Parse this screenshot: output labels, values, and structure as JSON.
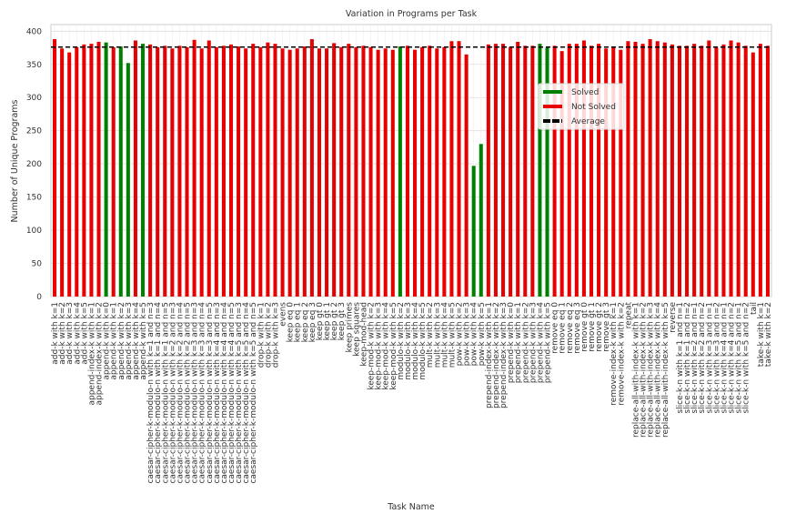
{
  "chart_data": {
    "type": "bar",
    "title": "Variation in Programs per Task",
    "x_label": "Task Name",
    "y_label": "Number of Unique Programs",
    "categories": [
      "add-k with k=1",
      "add-k with k=2",
      "add-k with k=3",
      "add-k with k=4",
      "add-k with k=5",
      "append-index-k with k=1",
      "append-index-k with k=2",
      "append-k with k=0",
      "append-k with k=1",
      "append-k with k=2",
      "append-k with k=3",
      "append-k with k=4",
      "append-k with k=5",
      "caesar-cipher-k-modulo-n with k=1 and n=3",
      "caesar-cipher-k-modulo-n with k=1 and n=4",
      "caesar-cipher-k-modulo-n with k=1 and n=5",
      "caesar-cipher-k-modulo-n with k=2 and n=3",
      "caesar-cipher-k-modulo-n with k=2 and n=4",
      "caesar-cipher-k-modulo-n with k=2 and n=5",
      "caesar-cipher-k-modulo-n with k=3 and n=3",
      "caesar-cipher-k-modulo-n with k=3 and n=4",
      "caesar-cipher-k-modulo-n with k=3 and n=5",
      "caesar-cipher-k-modulo-n with k=4 and n=3",
      "caesar-cipher-k-modulo-n with k=4 and n=4",
      "caesar-cipher-k-modulo-n with k=4 and n=5",
      "caesar-cipher-k-modulo-n with k=5 and n=3",
      "caesar-cipher-k-modulo-n with k=5 and n=4",
      "caesar-cipher-k-modulo-n with k=5 and n=5",
      "drop-k with k=1",
      "drop-k with k=2",
      "drop-k with k=3",
      "evens",
      "keep eq 0",
      "keep eq 1",
      "keep eq 2",
      "keep eq 3",
      "keep gt 0",
      "keep gt 1",
      "keep gt 2",
      "keep gt 3",
      "keep primes",
      "keep squares",
      "keep-mod-head",
      "keep-mod-k with k=2",
      "keep-mod-k with k=3",
      "keep-mod-k with k=4",
      "keep-mod-k with k=5",
      "modulo-k with k=2",
      "modulo-k with k=3",
      "modulo-k with k=4",
      "modulo-k with k=5",
      "mult-k with k=2",
      "mult-k with k=3",
      "mult-k with k=4",
      "mult-k with k=5",
      "pow-k with k=2",
      "pow-k with k=3",
      "pow-k with k=4",
      "pow-k with k=5",
      "prepend-index-k with k=1",
      "prepend-index-k with k=2",
      "prepend-index-k with k=3",
      "prepend-k with k=0",
      "prepend-k with k=1",
      "prepend-k with k=2",
      "prepend-k with k=3",
      "prepend-k with k=4",
      "prepend-k with k=5",
      "remove eq 0",
      "remove eq 1",
      "remove eq 2",
      "remove eq 3",
      "remove gt 0",
      "remove gt 1",
      "remove gt 2",
      "remove gt 3",
      "remove-index-k with k=1",
      "remove-index-k with k=2",
      "repeat",
      "replace-all-with-index-k with k=1",
      "replace-all-with-index-k with k=2",
      "replace-all-with-index-k with k=3",
      "replace-all-with-index-k with k=4",
      "replace-all-with-index-k with k=5",
      "reverse",
      "slice-k-n with k=1 and n=1",
      "slice-k-n with k=1 and n=2",
      "slice-k-n with k=2 and n=1",
      "slice-k-n with k=2 and n=2",
      "slice-k-n with k=3 and n=1",
      "slice-k-n with k=3 and n=2",
      "slice-k-n with k=4 and n=1",
      "slice-k-n with k=4 and n=2",
      "slice-k-n with k=5 and n=1",
      "slice-k-n with k=5 and n=2",
      "tail",
      "take-k with k=1",
      "take-k with k=2"
    ],
    "values": [
      388,
      374,
      368,
      376,
      380,
      381,
      384,
      383,
      376,
      377,
      352,
      386,
      381,
      380,
      376,
      378,
      374,
      378,
      376,
      387,
      374,
      386,
      376,
      378,
      380,
      377,
      374,
      381,
      376,
      383,
      381,
      374,
      372,
      374,
      377,
      388,
      374,
      374,
      382,
      376,
      381,
      376,
      378,
      376,
      372,
      374,
      372,
      377,
      378,
      372,
      376,
      378,
      374,
      376,
      385,
      385,
      365,
      197,
      230,
      380,
      381,
      381,
      376,
      384,
      378,
      378,
      381,
      375,
      378,
      370,
      381,
      381,
      386,
      378,
      381,
      374,
      376,
      372,
      385,
      384,
      381,
      388,
      385,
      383,
      380,
      378,
      378,
      381,
      378,
      386,
      375,
      380,
      386,
      383,
      378,
      368,
      381,
      378
    ],
    "colors": [
      "#e60000",
      "#e60000",
      "#e60000",
      "#e60000",
      "#e60000",
      "#e60000",
      "#e60000",
      "#008000",
      "#e60000",
      "#008000",
      "#008000",
      "#e60000",
      "#008000",
      "#e60000",
      "#e60000",
      "#e60000",
      "#e60000",
      "#e60000",
      "#e60000",
      "#e60000",
      "#e60000",
      "#e60000",
      "#e60000",
      "#e60000",
      "#e60000",
      "#e60000",
      "#e60000",
      "#e60000",
      "#e60000",
      "#e60000",
      "#e60000",
      "#e60000",
      "#e60000",
      "#e60000",
      "#e60000",
      "#e60000",
      "#e60000",
      "#e60000",
      "#e60000",
      "#e60000",
      "#e60000",
      "#e60000",
      "#e60000",
      "#e60000",
      "#e60000",
      "#e60000",
      "#e60000",
      "#008000",
      "#e60000",
      "#e60000",
      "#e60000",
      "#e60000",
      "#e60000",
      "#e60000",
      "#e60000",
      "#e60000",
      "#e60000",
      "#008000",
      "#008000",
      "#e60000",
      "#e60000",
      "#e60000",
      "#e60000",
      "#e60000",
      "#e60000",
      "#e60000",
      "#008000",
      "#008000",
      "#e60000",
      "#e60000",
      "#e60000",
      "#e60000",
      "#e60000",
      "#e60000",
      "#e60000",
      "#e60000",
      "#e60000",
      "#e60000",
      "#e60000",
      "#e60000",
      "#e60000",
      "#e60000",
      "#e60000",
      "#e60000",
      "#e60000",
      "#e60000",
      "#e60000",
      "#e60000",
      "#e60000",
      "#e60000",
      "#e60000",
      "#e60000",
      "#e60000",
      "#e60000",
      "#e60000",
      "#e60000",
      "#e60000",
      "#e60000"
    ],
    "average": 376,
    "average_color": "#000000",
    "legend": [
      {
        "name": "Solved",
        "color": "#008000"
      },
      {
        "name": "Not Solved",
        "color": "#e60000"
      },
      {
        "name": "Average",
        "color": "#000000"
      }
    ],
    "legend_position": "center right",
    "ylim": [
      0,
      410
    ],
    "yticks": [
      0,
      50,
      100,
      150,
      200,
      250,
      300,
      350,
      400
    ],
    "grid": true
  }
}
